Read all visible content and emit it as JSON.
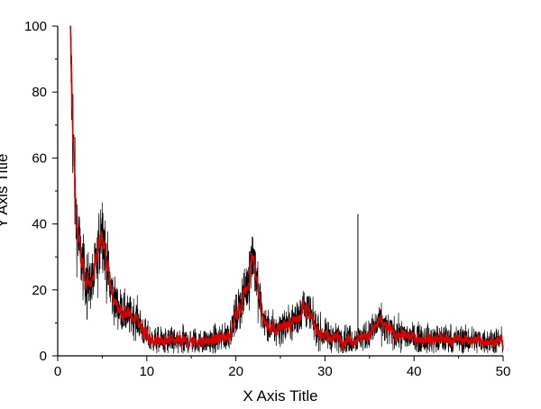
{
  "chart_data": {
    "type": "line",
    "title": "",
    "xlabel": "X Axis Title",
    "ylabel": "Y Axis Title",
    "xlim": [
      0,
      50
    ],
    "ylim": [
      0,
      100
    ],
    "x_ticks": [
      0,
      10,
      20,
      30,
      40,
      50
    ],
    "y_ticks": [
      0,
      20,
      40,
      60,
      80,
      100
    ],
    "grid": false,
    "legend": "none",
    "colors": {
      "raw": "#000000",
      "smoothed": "#dd0000"
    },
    "series": [
      {
        "x": [
          1.4,
          1.6,
          1.8,
          2.0,
          2.3,
          2.6,
          3.0,
          3.5,
          4.0,
          4.5,
          4.8,
          5.0,
          5.2,
          5.5,
          6.0,
          6.5,
          7.0,
          7.5,
          8.0,
          8.5,
          9.0,
          9.5,
          10.0,
          10.5,
          11.0,
          12.0,
          13.0,
          14.0,
          15.0,
          16.0,
          17.0,
          18.0,
          19.0,
          19.5,
          20.0,
          20.5,
          21.0,
          21.5,
          21.8,
          22.0,
          22.2,
          22.5,
          23.0,
          23.5,
          24.0,
          24.5,
          25.0,
          26.0,
          27.0,
          27.5,
          28.0,
          28.5,
          29.0,
          30.0,
          31.0,
          32.0,
          33.0,
          34.0,
          35.0,
          35.5,
          36.0,
          36.5,
          37.0,
          38.0,
          39.0,
          40.0,
          42.0,
          44.0,
          46.0,
          48.0,
          50.0
        ],
        "y": [
          98,
          80,
          60,
          45,
          36,
          30,
          25,
          22,
          23,
          30,
          38,
          40,
          35,
          28,
          20,
          16,
          14,
          13,
          12,
          12,
          11,
          8,
          6,
          5,
          4.5,
          4.3,
          4.2,
          4.3,
          4.3,
          4.4,
          4.6,
          5,
          6,
          8,
          12,
          15,
          19,
          24,
          32,
          30,
          26,
          19,
          12,
          9,
          8,
          7.5,
          9,
          9.5,
          12,
          15,
          14,
          11,
          8,
          6,
          5.5,
          5.2,
          5,
          5.5,
          6.5,
          8,
          10,
          9.5,
          8,
          6.5,
          6,
          5.5,
          5,
          5,
          4.8,
          4.6,
          4.5
        ]
      }
    ],
    "spikes": [
      {
        "x": 33.7,
        "y": 43
      },
      {
        "x": 3.3,
        "y": 11
      }
    ]
  }
}
